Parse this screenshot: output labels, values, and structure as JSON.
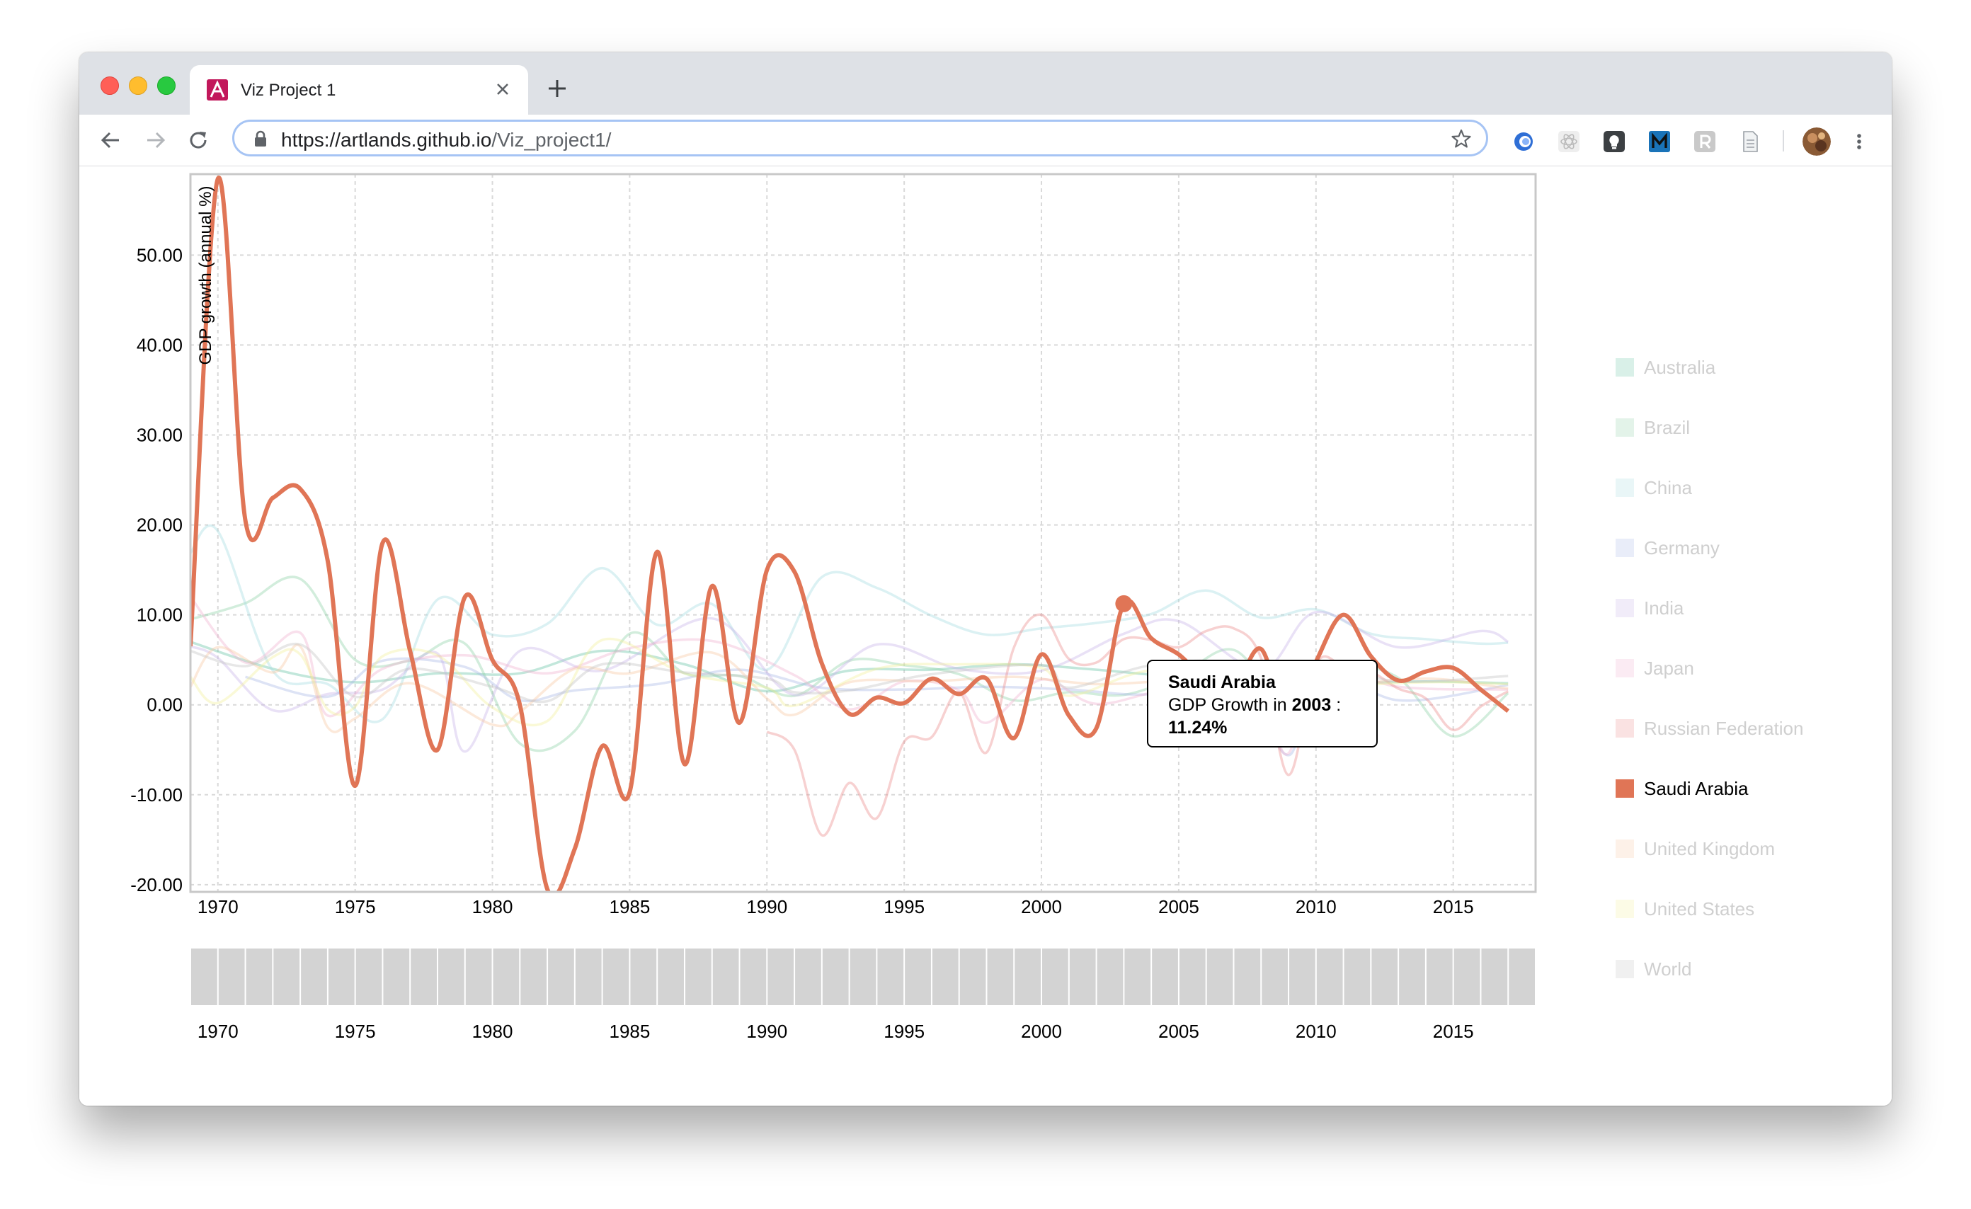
{
  "browser": {
    "tab_title": "Viz Project 1",
    "url_host": "https://artlands.github.io",
    "url_path": "/Viz_project1/"
  },
  "legend": {
    "items": [
      {
        "label": "Australia",
        "color": "#66c2a5"
      },
      {
        "label": "Brazil",
        "color": "#8ed1a8"
      },
      {
        "label": "China",
        "color": "#a6dce0"
      },
      {
        "label": "Germany",
        "color": "#a9b8e6"
      },
      {
        "label": "India",
        "color": "#c8b4e8"
      },
      {
        "label": "Japan",
        "color": "#efb1cf"
      },
      {
        "label": "Russian Federation",
        "color": "#ec8c8c"
      },
      {
        "label": "Saudi Arabia",
        "color": "#e07556"
      },
      {
        "label": "United Kingdom",
        "color": "#f7c9a3"
      },
      {
        "label": "United States",
        "color": "#f2ef9c"
      },
      {
        "label": "World",
        "color": "#c4c4c4"
      }
    ],
    "active": "Saudi Arabia"
  },
  "tooltip": {
    "country": "Saudi Arabia",
    "prefix": "GDP Growth in",
    "year": "2003",
    "separator": ":",
    "value": "11.24%"
  },
  "chart_data": {
    "type": "line",
    "ylabel": "GDP growth (annual %)",
    "xlim": [
      1969,
      2018
    ],
    "ylim": [
      -20.8,
      59
    ],
    "x_ticks": [
      "1970",
      "1975",
      "1980",
      "1985",
      "1990",
      "1995",
      "2000",
      "2005",
      "2010",
      "2015"
    ],
    "y_ticks": [
      "50.00",
      "40.00",
      "30.00",
      "20.00",
      "10.00",
      "0.00",
      "-10.00",
      "-20.00"
    ],
    "grid": true,
    "highlighted_series": "Saudi Arabia",
    "highlighted_point": {
      "x": 2003,
      "y": 11.24
    },
    "series": [
      {
        "name": "Saudi Arabia",
        "x": [
          1969,
          1970,
          1971,
          1972,
          1973,
          1974,
          1975,
          1976,
          1977,
          1978,
          1979,
          1980,
          1981,
          1982,
          1983,
          1984,
          1985,
          1986,
          1987,
          1988,
          1989,
          1990,
          1991,
          1992,
          1993,
          1994,
          1995,
          1996,
          1997,
          1998,
          1999,
          2000,
          2001,
          2002,
          2003,
          2004,
          2005,
          2006,
          2007,
          2008,
          2009,
          2010,
          2011,
          2012,
          2013,
          2014,
          2015,
          2016,
          2017
        ],
        "y": [
          6.5,
          58.5,
          20.5,
          23,
          24,
          16,
          -9,
          18,
          6,
          -5,
          12,
          5,
          0,
          -20.5,
          -16,
          -4.6,
          -9.7,
          17,
          -6.6,
          13.2,
          -2,
          15,
          14.8,
          4.6,
          -1,
          0.8,
          0.2,
          2.9,
          1.2,
          2.9,
          -3.7,
          5.6,
          -1.2,
          -2.6,
          11.24,
          7.4,
          5.6,
          2.8,
          1.8,
          6.2,
          -2.1,
          4.8,
          10,
          5.4,
          2.7,
          3.7,
          4.1,
          1.7,
          -0.7
        ]
      },
      {
        "name": "Australia",
        "x": [
          1969,
          1972,
          1975,
          1978,
          1981,
          1984,
          1987,
          1990,
          1993,
          1996,
          1999,
          2002,
          2005,
          2008,
          2011,
          2014,
          2017
        ],
        "y": [
          7,
          4,
          2.5,
          3.5,
          3.5,
          6,
          4.5,
          1.5,
          3.8,
          3.9,
          4.5,
          3.9,
          3.2,
          3.7,
          2.5,
          2.6,
          2.4
        ]
      },
      {
        "name": "Brazil",
        "x": [
          1969,
          1971,
          1973,
          1975,
          1977,
          1979,
          1981,
          1983,
          1985,
          1987,
          1989,
          1991,
          1993,
          1995,
          1997,
          1999,
          2001,
          2003,
          2005,
          2007,
          2009,
          2011,
          2013,
          2015,
          2017
        ],
        "y": [
          9.5,
          11.3,
          14,
          5,
          4.9,
          6.8,
          -4.3,
          -2.9,
          7.9,
          3.5,
          3.2,
          1,
          4.9,
          4.4,
          3.4,
          0.5,
          1.4,
          1.1,
          3.2,
          6.1,
          -0.1,
          4,
          3,
          -3.5,
          1.3
        ]
      },
      {
        "name": "China",
        "x": [
          1969,
          1970,
          1972,
          1974,
          1976,
          1978,
          1980,
          1982,
          1984,
          1986,
          1988,
          1990,
          1992,
          1994,
          1996,
          1998,
          2000,
          2002,
          2004,
          2006,
          2008,
          2010,
          2012,
          2014,
          2016,
          2017
        ],
        "y": [
          16.9,
          19.3,
          3.8,
          2.3,
          -1.6,
          11.7,
          7.8,
          9,
          15.2,
          8.9,
          11.2,
          3.9,
          14.2,
          13,
          9.9,
          7.8,
          8.5,
          9.1,
          10.1,
          12.7,
          9.7,
          10.6,
          7.9,
          7.3,
          6.8,
          6.9
        ]
      },
      {
        "name": "Germany",
        "x": [
          1971,
          1974,
          1976,
          1979,
          1981,
          1983,
          1986,
          1989,
          1992,
          1995,
          1998,
          2001,
          2004,
          2007,
          2009,
          2010,
          2013,
          2017
        ],
        "y": [
          3.1,
          0.9,
          4.9,
          4.2,
          0.5,
          1.6,
          2.3,
          3.9,
          1.9,
          1.7,
          2,
          1.7,
          1.2,
          3.3,
          -5.6,
          4.1,
          0.5,
          2.2
        ]
      },
      {
        "name": "India",
        "x": [
          1969,
          1970,
          1972,
          1974,
          1976,
          1978,
          1979,
          1981,
          1984,
          1988,
          1991,
          1994,
          1997,
          2000,
          2003,
          2005,
          2008,
          2010,
          2013,
          2016,
          2017
        ],
        "y": [
          6.5,
          5.2,
          -0.6,
          1.2,
          1.7,
          5.7,
          -5.2,
          6,
          3.8,
          9.6,
          1.1,
          6.7,
          4,
          3.8,
          7.9,
          9.3,
          3.9,
          10.3,
          6.4,
          8.2,
          7
        ]
      },
      {
        "name": "Japan",
        "x": [
          1969,
          1971,
          1973,
          1974,
          1976,
          1979,
          1982,
          1985,
          1988,
          1991,
          1993,
          1995,
          1997,
          1998,
          2000,
          2002,
          2005,
          2008,
          2009,
          2010,
          2013,
          2017
        ],
        "y": [
          12,
          4.7,
          8,
          -1.2,
          4,
          5.5,
          3.5,
          6.3,
          7.1,
          3.3,
          -0.5,
          2.6,
          1.6,
          -2,
          2.8,
          0.1,
          1.7,
          -1.1,
          -5.4,
          4.2,
          2,
          1.7
        ]
      },
      {
        "name": "Russian Federation",
        "x": [
          1990,
          1991,
          1992,
          1993,
          1994,
          1995,
          1996,
          1997,
          1998,
          1999,
          2000,
          2001,
          2002,
          2003,
          2004,
          2005,
          2006,
          2007,
          2008,
          2009,
          2010,
          2011,
          2012,
          2013,
          2014,
          2015,
          2016,
          2017
        ],
        "y": [
          -3,
          -5,
          -14.5,
          -8.7,
          -12.6,
          -4.1,
          -3.6,
          1.4,
          -5.3,
          6.4,
          10,
          5.1,
          4.7,
          7.3,
          7.2,
          6.4,
          8.2,
          8.5,
          5.2,
          -7.8,
          4.5,
          4.3,
          3.7,
          1.8,
          0.7,
          -2.8,
          -0.2,
          1.5
        ]
      },
      {
        "name": "United Kingdom",
        "x": [
          1969,
          1970,
          1972,
          1973,
          1974,
          1975,
          1977,
          1980,
          1981,
          1983,
          1985,
          1988,
          1990,
          1991,
          1993,
          1996,
          1999,
          2002,
          2005,
          2007,
          2009,
          2011,
          2014,
          2017
        ],
        "y": [
          2,
          6.4,
          3.6,
          6.5,
          -2.5,
          -1.5,
          2.4,
          -2.2,
          -0.8,
          4,
          3.5,
          5.8,
          0.7,
          -1.1,
          2.5,
          2.6,
          3.1,
          2.3,
          2.7,
          2.4,
          -4.2,
          1.5,
          2.9,
          1.8
        ]
      },
      {
        "name": "United States",
        "x": [
          1969,
          1970,
          1972,
          1973,
          1974,
          1975,
          1976,
          1978,
          1980,
          1982,
          1984,
          1987,
          1990,
          1991,
          1994,
          1997,
          2000,
          2001,
          2004,
          2007,
          2008,
          2009,
          2011,
          2014,
          2017
        ],
        "y": [
          3.1,
          0.2,
          5.3,
          5.6,
          -0.5,
          -0.2,
          5.4,
          5.5,
          -0.3,
          -1.8,
          7.2,
          3.5,
          1.9,
          -0.1,
          4,
          4.5,
          4.1,
          1,
          3.8,
          1.8,
          -0.3,
          -2.8,
          1.6,
          2.5,
          2.3
        ]
      },
      {
        "name": "World",
        "x": [
          1969,
          1971,
          1973,
          1975,
          1977,
          1980,
          1982,
          1984,
          1987,
          1990,
          1991,
          1993,
          1996,
          2000,
          2001,
          2004,
          2007,
          2009,
          2010,
          2013,
          2017
        ],
        "y": [
          6,
          4.3,
          6.7,
          0.9,
          4,
          2,
          0.4,
          4.5,
          3.6,
          2.9,
          1.4,
          1.6,
          3.4,
          4.4,
          1.9,
          4.4,
          4.3,
          -1.7,
          4.3,
          2.6,
          3.2
        ]
      }
    ]
  },
  "brush": {
    "x_ticks": [
      "1970",
      "1975",
      "1980",
      "1985",
      "1990",
      "1995",
      "2000",
      "2005",
      "2010",
      "2015"
    ]
  }
}
